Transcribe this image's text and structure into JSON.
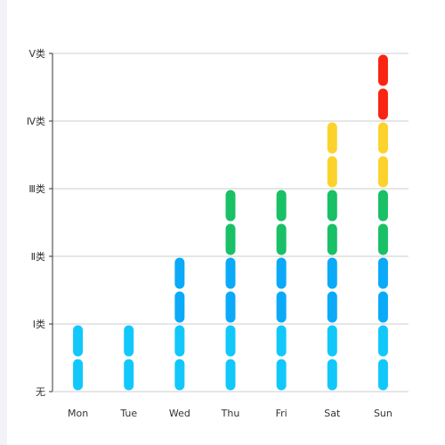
{
  "chart_data": {
    "type": "bar",
    "variant": "stacked-segmented",
    "categories": [
      "Mon",
      "Tue",
      "Wed",
      "Thu",
      "Fri",
      "Sat",
      "Sun"
    ],
    "y_tick_labels": [
      "无",
      "Ⅰ类",
      "Ⅱ类",
      "Ⅲ类",
      "Ⅳ类",
      "Ⅴ类"
    ],
    "ylim": [
      0,
      5
    ],
    "values": [
      1,
      1,
      2,
      3,
      3,
      4,
      5
    ],
    "segments_per_level": 2,
    "level_colors": [
      "#12c8fb",
      "#0aaaf8",
      "#19c066",
      "#fcd22c",
      "#fa2412"
    ],
    "grid": true,
    "legend": "none"
  }
}
